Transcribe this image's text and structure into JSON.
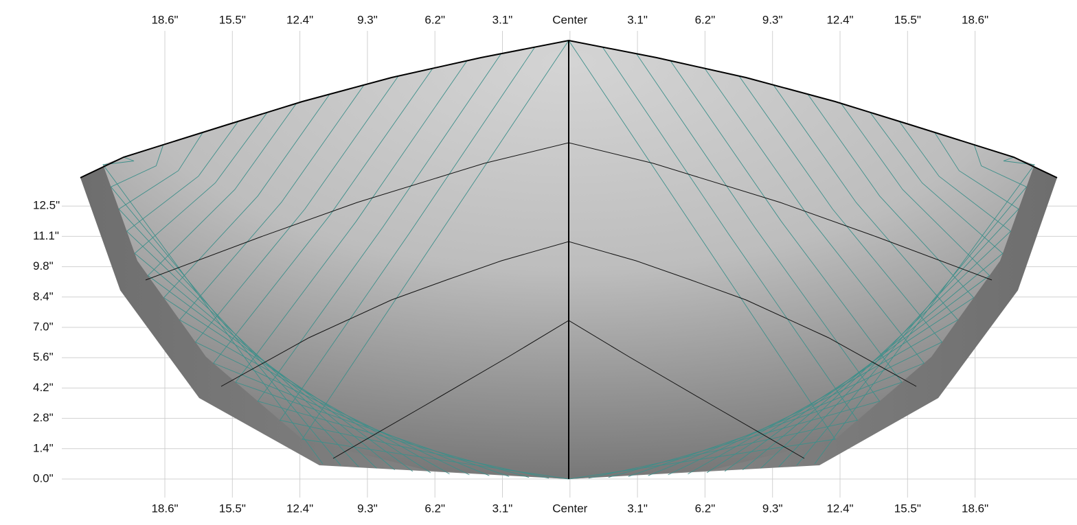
{
  "top_labels": [
    "18.6\"",
    "15.5\"",
    "12.4\"",
    "9.3\"",
    "6.2\"",
    "3.1\"",
    "Center",
    "3.1\"",
    "6.2\"",
    "9.3\"",
    "12.4\"",
    "15.5\"",
    "18.6\""
  ],
  "bottom_labels": [
    "18.6\"",
    "15.5\"",
    "12.4\"",
    "9.3\"",
    "6.2\"",
    "3.1\"",
    "Center",
    "3.1\"",
    "6.2\"",
    "9.3\"",
    "12.4\"",
    "15.5\"",
    "18.6\""
  ],
  "left_labels": [
    "0.0\"",
    "1.4\"",
    "2.8\"",
    "4.2\"",
    "5.6\"",
    "7.0\"",
    "8.4\"",
    "9.8\"",
    "11.1\"",
    "12.5\""
  ]
}
